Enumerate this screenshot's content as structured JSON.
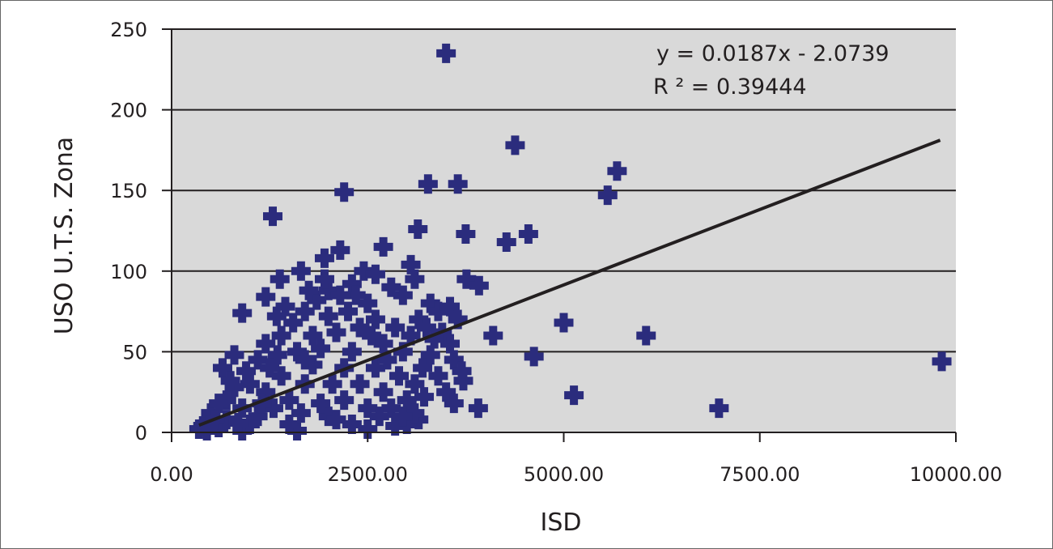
{
  "chart_data": {
    "type": "scatter",
    "title": "",
    "xlabel": "ISD",
    "ylabel": "USO U.T.S. Zona",
    "xlim": [
      0,
      10000
    ],
    "ylim": [
      0,
      250
    ],
    "x_ticks": [
      0,
      2500,
      5000,
      7500,
      10000
    ],
    "x_tick_labels": [
      "0.00",
      "2500.00",
      "5000.00",
      "7500.00",
      "10000.00"
    ],
    "y_ticks": [
      0,
      50,
      100,
      150,
      200,
      250
    ],
    "y_tick_labels": [
      "0",
      "50",
      "100",
      "150",
      "200",
      "250"
    ],
    "grid": "horizontal",
    "plot_background": "#d9d9d9",
    "marker_color": "#2b2c7d",
    "trendline": {
      "equation": "y = 0.0187x - 2.0739",
      "r_squared": "R ² = 0.39444",
      "slope": 0.0187,
      "intercept": -2.0739,
      "x_range": [
        350,
        9800
      ],
      "color": "#231f20"
    },
    "points": [
      [
        3500,
        235
      ],
      [
        4380,
        178
      ],
      [
        5680,
        162
      ],
      [
        2200,
        149
      ],
      [
        3270,
        154
      ],
      [
        3650,
        154
      ],
      [
        5560,
        147
      ],
      [
        1290,
        134
      ],
      [
        3140,
        126
      ],
      [
        3750,
        123
      ],
      [
        4270,
        118
      ],
      [
        4550,
        123
      ],
      [
        2150,
        113
      ],
      [
        2700,
        115
      ],
      [
        1650,
        100
      ],
      [
        1950,
        108
      ],
      [
        3050,
        104
      ],
      [
        1380,
        95
      ],
      [
        3760,
        95
      ],
      [
        3920,
        91
      ],
      [
        1200,
        84
      ],
      [
        900,
        74
      ],
      [
        1340,
        72
      ],
      [
        5000,
        68
      ],
      [
        4100,
        60
      ],
      [
        6050,
        60
      ],
      [
        4620,
        47
      ],
      [
        9820,
        44
      ],
      [
        5130,
        23
      ],
      [
        6980,
        15
      ],
      [
        3910,
        15
      ],
      [
        3720,
        32
      ],
      [
        3150,
        8
      ],
      [
        3220,
        22
      ],
      [
        2850,
        4
      ],
      [
        2500,
        2
      ],
      [
        1600,
        1
      ],
      [
        900,
        1
      ],
      [
        600,
        3
      ],
      [
        400,
        4
      ],
      [
        350,
        2
      ],
      [
        500,
        12
      ],
      [
        700,
        20
      ],
      [
        650,
        40
      ],
      [
        800,
        48
      ],
      [
        1000,
        30
      ],
      [
        1100,
        45
      ],
      [
        1200,
        55
      ],
      [
        1400,
        60
      ],
      [
        1550,
        68
      ],
      [
        1700,
        75
      ],
      [
        1850,
        82
      ],
      [
        2000,
        88
      ],
      [
        2300,
        92
      ],
      [
        2450,
        100
      ],
      [
        2600,
        98
      ],
      [
        2800,
        90
      ],
      [
        2950,
        85
      ],
      [
        3100,
        95
      ],
      [
        3300,
        80
      ],
      [
        3400,
        75
      ],
      [
        3550,
        78
      ],
      [
        3650,
        70
      ],
      [
        3550,
        55
      ],
      [
        3450,
        62
      ],
      [
        3600,
        45
      ],
      [
        3700,
        38
      ],
      [
        3300,
        48
      ],
      [
        3200,
        40
      ],
      [
        3100,
        30
      ],
      [
        3000,
        20
      ],
      [
        2900,
        35
      ],
      [
        2800,
        15
      ],
      [
        2700,
        55
      ],
      [
        2600,
        70
      ],
      [
        2500,
        80
      ],
      [
        2400,
        65
      ],
      [
        2300,
        50
      ],
      [
        2200,
        40
      ],
      [
        2100,
        62
      ],
      [
        2000,
        72
      ],
      [
        1900,
        52
      ],
      [
        1800,
        42
      ],
      [
        1700,
        30
      ],
      [
        1600,
        50
      ],
      [
        1500,
        20
      ],
      [
        1400,
        35
      ],
      [
        1300,
        15
      ],
      [
        1200,
        25
      ],
      [
        1100,
        10
      ],
      [
        1000,
        5
      ],
      [
        900,
        15
      ],
      [
        800,
        28
      ],
      [
        700,
        8
      ],
      [
        600,
        18
      ],
      [
        1500,
        5
      ],
      [
        2000,
        10
      ],
      [
        2200,
        20
      ],
      [
        2400,
        30
      ],
      [
        2600,
        40
      ],
      [
        2700,
        25
      ],
      [
        2500,
        15
      ],
      [
        2300,
        5
      ],
      [
        2100,
        8
      ],
      [
        1900,
        18
      ],
      [
        1800,
        60
      ],
      [
        1700,
        45
      ],
      [
        1650,
        12
      ],
      [
        2050,
        30
      ],
      [
        2250,
        75
      ],
      [
        2350,
        85
      ],
      [
        2550,
        60
      ],
      [
        2650,
        10
      ],
      [
        2750,
        45
      ],
      [
        2850,
        65
      ],
      [
        2950,
        50
      ],
      [
        3050,
        60
      ],
      [
        3150,
        70
      ],
      [
        3250,
        65
      ],
      [
        3350,
        58
      ],
      [
        1950,
        95
      ],
      [
        2150,
        85
      ],
      [
        1750,
        88
      ],
      [
        1450,
        78
      ],
      [
        1350,
        48
      ],
      [
        1250,
        40
      ],
      [
        1150,
        18
      ],
      [
        950,
        38
      ],
      [
        850,
        6
      ],
      [
        750,
        32
      ],
      [
        550,
        8
      ],
      [
        450,
        1
      ],
      [
        3400,
        35
      ],
      [
        3500,
        25
      ],
      [
        3600,
        18
      ],
      [
        3000,
        5
      ],
      [
        3100,
        12
      ],
      [
        2950,
        10
      ]
    ]
  }
}
